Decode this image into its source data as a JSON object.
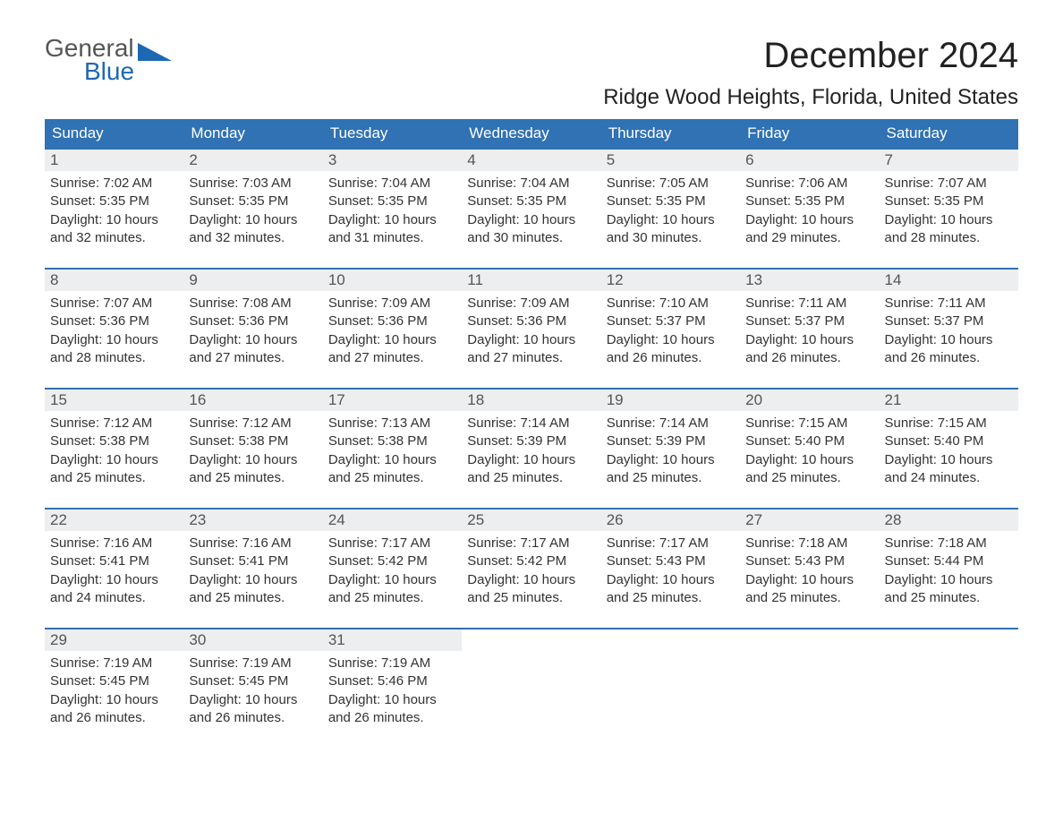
{
  "logo": {
    "line1": "General",
    "line2": "Blue"
  },
  "title": "December 2024",
  "location": "Ridge Wood Heights, Florida, United States",
  "colors": {
    "header_bg": "#3072b3",
    "header_text": "#ffffff",
    "row_border": "#3072b3",
    "daynum_bg": "#eceeef",
    "text": "#333333",
    "logo_accent": "#1d68b3"
  },
  "day_names": [
    "Sunday",
    "Monday",
    "Tuesday",
    "Wednesday",
    "Thursday",
    "Friday",
    "Saturday"
  ],
  "weeks": [
    [
      {
        "n": "1",
        "sunrise": "7:02 AM",
        "sunset": "5:35 PM",
        "dl1": "10 hours",
        "dl2": "32 minutes"
      },
      {
        "n": "2",
        "sunrise": "7:03 AM",
        "sunset": "5:35 PM",
        "dl1": "10 hours",
        "dl2": "32 minutes"
      },
      {
        "n": "3",
        "sunrise": "7:04 AM",
        "sunset": "5:35 PM",
        "dl1": "10 hours",
        "dl2": "31 minutes"
      },
      {
        "n": "4",
        "sunrise": "7:04 AM",
        "sunset": "5:35 PM",
        "dl1": "10 hours",
        "dl2": "30 minutes"
      },
      {
        "n": "5",
        "sunrise": "7:05 AM",
        "sunset": "5:35 PM",
        "dl1": "10 hours",
        "dl2": "30 minutes"
      },
      {
        "n": "6",
        "sunrise": "7:06 AM",
        "sunset": "5:35 PM",
        "dl1": "10 hours",
        "dl2": "29 minutes"
      },
      {
        "n": "7",
        "sunrise": "7:07 AM",
        "sunset": "5:35 PM",
        "dl1": "10 hours",
        "dl2": "28 minutes"
      }
    ],
    [
      {
        "n": "8",
        "sunrise": "7:07 AM",
        "sunset": "5:36 PM",
        "dl1": "10 hours",
        "dl2": "28 minutes"
      },
      {
        "n": "9",
        "sunrise": "7:08 AM",
        "sunset": "5:36 PM",
        "dl1": "10 hours",
        "dl2": "27 minutes"
      },
      {
        "n": "10",
        "sunrise": "7:09 AM",
        "sunset": "5:36 PM",
        "dl1": "10 hours",
        "dl2": "27 minutes"
      },
      {
        "n": "11",
        "sunrise": "7:09 AM",
        "sunset": "5:36 PM",
        "dl1": "10 hours",
        "dl2": "27 minutes"
      },
      {
        "n": "12",
        "sunrise": "7:10 AM",
        "sunset": "5:37 PM",
        "dl1": "10 hours",
        "dl2": "26 minutes"
      },
      {
        "n": "13",
        "sunrise": "7:11 AM",
        "sunset": "5:37 PM",
        "dl1": "10 hours",
        "dl2": "26 minutes"
      },
      {
        "n": "14",
        "sunrise": "7:11 AM",
        "sunset": "5:37 PM",
        "dl1": "10 hours",
        "dl2": "26 minutes"
      }
    ],
    [
      {
        "n": "15",
        "sunrise": "7:12 AM",
        "sunset": "5:38 PM",
        "dl1": "10 hours",
        "dl2": "25 minutes"
      },
      {
        "n": "16",
        "sunrise": "7:12 AM",
        "sunset": "5:38 PM",
        "dl1": "10 hours",
        "dl2": "25 minutes"
      },
      {
        "n": "17",
        "sunrise": "7:13 AM",
        "sunset": "5:38 PM",
        "dl1": "10 hours",
        "dl2": "25 minutes"
      },
      {
        "n": "18",
        "sunrise": "7:14 AM",
        "sunset": "5:39 PM",
        "dl1": "10 hours",
        "dl2": "25 minutes"
      },
      {
        "n": "19",
        "sunrise": "7:14 AM",
        "sunset": "5:39 PM",
        "dl1": "10 hours",
        "dl2": "25 minutes"
      },
      {
        "n": "20",
        "sunrise": "7:15 AM",
        "sunset": "5:40 PM",
        "dl1": "10 hours",
        "dl2": "25 minutes"
      },
      {
        "n": "21",
        "sunrise": "7:15 AM",
        "sunset": "5:40 PM",
        "dl1": "10 hours",
        "dl2": "24 minutes"
      }
    ],
    [
      {
        "n": "22",
        "sunrise": "7:16 AM",
        "sunset": "5:41 PM",
        "dl1": "10 hours",
        "dl2": "24 minutes"
      },
      {
        "n": "23",
        "sunrise": "7:16 AM",
        "sunset": "5:41 PM",
        "dl1": "10 hours",
        "dl2": "25 minutes"
      },
      {
        "n": "24",
        "sunrise": "7:17 AM",
        "sunset": "5:42 PM",
        "dl1": "10 hours",
        "dl2": "25 minutes"
      },
      {
        "n": "25",
        "sunrise": "7:17 AM",
        "sunset": "5:42 PM",
        "dl1": "10 hours",
        "dl2": "25 minutes"
      },
      {
        "n": "26",
        "sunrise": "7:17 AM",
        "sunset": "5:43 PM",
        "dl1": "10 hours",
        "dl2": "25 minutes"
      },
      {
        "n": "27",
        "sunrise": "7:18 AM",
        "sunset": "5:43 PM",
        "dl1": "10 hours",
        "dl2": "25 minutes"
      },
      {
        "n": "28",
        "sunrise": "7:18 AM",
        "sunset": "5:44 PM",
        "dl1": "10 hours",
        "dl2": "25 minutes"
      }
    ],
    [
      {
        "n": "29",
        "sunrise": "7:19 AM",
        "sunset": "5:45 PM",
        "dl1": "10 hours",
        "dl2": "26 minutes"
      },
      {
        "n": "30",
        "sunrise": "7:19 AM",
        "sunset": "5:45 PM",
        "dl1": "10 hours",
        "dl2": "26 minutes"
      },
      {
        "n": "31",
        "sunrise": "7:19 AM",
        "sunset": "5:46 PM",
        "dl1": "10 hours",
        "dl2": "26 minutes"
      },
      null,
      null,
      null,
      null
    ]
  ],
  "labels": {
    "sunrise": "Sunrise: ",
    "sunset": "Sunset: ",
    "daylight": "Daylight: ",
    "and": "and "
  }
}
